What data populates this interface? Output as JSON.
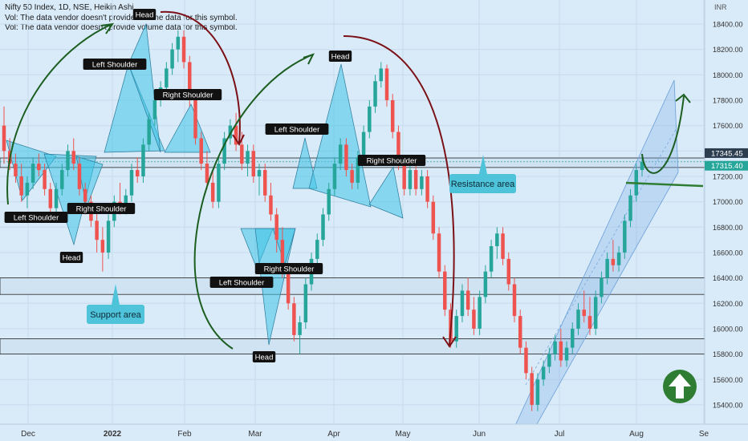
{
  "chart_data": {
    "type": "candlestick",
    "title": "Nifty 50 Index, 1D, NSE, Heikin Ashi",
    "notes": [
      "Vol: The data vendor doesn't provide volume data for this symbol.",
      "Vol: The data vendor doesn't provide volume data for this symbol."
    ],
    "currency": "INR",
    "ylim": [
      15200,
      18600
    ],
    "y_ticks": [
      "18400.00",
      "18200.00",
      "18000.00",
      "17800.00",
      "17600.00",
      "17400.00",
      "17200.00",
      "17000.00",
      "16800.00",
      "16600.00",
      "16400.00",
      "16200.00",
      "16000.00",
      "15800.00",
      "15600.00",
      "15400.00"
    ],
    "x_ticks": [
      "Dec",
      "2022",
      "Feb",
      "Mar",
      "Apr",
      "May",
      "Jun",
      "Jul",
      "Aug",
      "Se"
    ],
    "price_tags": [
      {
        "label": "17345.45",
        "value": 17345.45,
        "color": "#2c3e50"
      },
      {
        "label": "17315.40",
        "value": 17315.4,
        "color": "#26a69a"
      }
    ],
    "candles": [
      [
        17600,
        17750,
        17300,
        17400
      ],
      [
        17400,
        17500,
        17250,
        17300
      ],
      [
        17300,
        17380,
        17150,
        17200
      ],
      [
        17200,
        17300,
        17000,
        17050
      ],
      [
        17050,
        17200,
        16950,
        17150
      ],
      [
        17150,
        17350,
        17100,
        17300
      ],
      [
        17300,
        17380,
        17200,
        17250
      ],
      [
        17250,
        17300,
        17050,
        17100
      ],
      [
        17100,
        17150,
        16850,
        16950
      ],
      [
        16950,
        17150,
        16900,
        17100
      ],
      [
        17100,
        17300,
        17050,
        17250
      ],
      [
        17250,
        17450,
        17200,
        17400
      ],
      [
        17400,
        17500,
        17250,
        17300
      ],
      [
        17300,
        17350,
        17050,
        17100
      ],
      [
        17100,
        17150,
        16900,
        17000
      ],
      [
        17000,
        17050,
        16800,
        16850
      ],
      [
        16850,
        16950,
        16600,
        16700
      ],
      [
        16700,
        16800,
        16450,
        16600
      ],
      [
        16600,
        16900,
        16550,
        16850
      ],
      [
        16850,
        17050,
        16800,
        17000
      ],
      [
        17000,
        17150,
        16900,
        16950
      ],
      [
        16950,
        17100,
        16900,
        17050
      ],
      [
        17050,
        17300,
        17000,
        17250
      ],
      [
        17250,
        17350,
        17150,
        17200
      ],
      [
        17200,
        17500,
        17150,
        17450
      ],
      [
        17450,
        17700,
        17400,
        17650
      ],
      [
        17650,
        17850,
        17600,
        17800
      ],
      [
        17800,
        17950,
        17750,
        17900
      ],
      [
        17900,
        18100,
        17850,
        18050
      ],
      [
        18050,
        18250,
        18000,
        18200
      ],
      [
        18200,
        18350,
        18100,
        18300
      ],
      [
        18300,
        18350,
        18050,
        18100
      ],
      [
        18100,
        18150,
        17750,
        17800
      ],
      [
        17800,
        17850,
        17450,
        17500
      ],
      [
        17500,
        17550,
        17250,
        17300
      ],
      [
        17300,
        17400,
        17100,
        17150
      ],
      [
        17150,
        17250,
        16950,
        17000
      ],
      [
        17000,
        17350,
        16950,
        17300
      ],
      [
        17300,
        17550,
        17250,
        17500
      ],
      [
        17500,
        17650,
        17450,
        17600
      ],
      [
        17600,
        17700,
        17400,
        17450
      ],
      [
        17450,
        17550,
        17250,
        17300
      ],
      [
        17300,
        17450,
        17200,
        17400
      ],
      [
        17400,
        17450,
        17150,
        17200
      ],
      [
        17200,
        17300,
        17050,
        17250
      ],
      [
        17250,
        17300,
        17000,
        17050
      ],
      [
        17050,
        17150,
        16850,
        16900
      ],
      [
        16900,
        16950,
        16600,
        16700
      ],
      [
        16700,
        16800,
        16400,
        16450
      ],
      [
        16450,
        16500,
        16150,
        16200
      ],
      [
        16200,
        16250,
        15900,
        15950
      ],
      [
        15950,
        16100,
        15800,
        16050
      ],
      [
        16050,
        16400,
        16000,
        16350
      ],
      [
        16350,
        16600,
        16300,
        16550
      ],
      [
        16550,
        16750,
        16500,
        16700
      ],
      [
        16700,
        16950,
        16650,
        16900
      ],
      [
        16900,
        17150,
        16850,
        17100
      ],
      [
        17100,
        17350,
        17050,
        17300
      ],
      [
        17300,
        17500,
        17250,
        17450
      ],
      [
        17450,
        17500,
        17200,
        17250
      ],
      [
        17250,
        17300,
        17100,
        17150
      ],
      [
        17150,
        17400,
        17100,
        17350
      ],
      [
        17350,
        17600,
        17300,
        17550
      ],
      [
        17550,
        17800,
        17500,
        17750
      ],
      [
        17750,
        18000,
        17700,
        17950
      ],
      [
        17950,
        18100,
        17900,
        18050
      ],
      [
        18050,
        18080,
        17750,
        17800
      ],
      [
        17800,
        17850,
        17500,
        17550
      ],
      [
        17550,
        17600,
        17250,
        17300
      ],
      [
        17300,
        17350,
        17050,
        17100
      ],
      [
        17100,
        17300,
        17050,
        17250
      ],
      [
        17250,
        17300,
        17050,
        17100
      ],
      [
        17100,
        17250,
        17050,
        17200
      ],
      [
        17200,
        17250,
        16950,
        17000
      ],
      [
        17000,
        17050,
        16700,
        16750
      ],
      [
        16750,
        16800,
        16400,
        16450
      ],
      [
        16450,
        16500,
        16100,
        16150
      ],
      [
        16150,
        16200,
        15850,
        15900
      ],
      [
        15900,
        16150,
        15850,
        16100
      ],
      [
        16100,
        16350,
        16050,
        16300
      ],
      [
        16300,
        16400,
        16100,
        16150
      ],
      [
        16150,
        16250,
        15950,
        16000
      ],
      [
        16000,
        16300,
        15950,
        16250
      ],
      [
        16250,
        16500,
        16200,
        16450
      ],
      [
        16450,
        16700,
        16400,
        16650
      ],
      [
        16650,
        16800,
        16550,
        16750
      ],
      [
        16750,
        16800,
        16500,
        16550
      ],
      [
        16550,
        16600,
        16300,
        16350
      ],
      [
        16350,
        16400,
        16050,
        16100
      ],
      [
        16100,
        16150,
        15800,
        15850
      ],
      [
        15850,
        15900,
        15600,
        15650
      ],
      [
        15650,
        15700,
        15350,
        15400
      ],
      [
        15400,
        15650,
        15350,
        15600
      ],
      [
        15600,
        15750,
        15550,
        15700
      ],
      [
        15700,
        15850,
        15650,
        15800
      ],
      [
        15800,
        15950,
        15750,
        15900
      ],
      [
        15900,
        16000,
        15700,
        15750
      ],
      [
        15750,
        15900,
        15700,
        15850
      ],
      [
        15850,
        16050,
        15800,
        16000
      ],
      [
        16000,
        16200,
        15950,
        16150
      ],
      [
        16150,
        16300,
        16050,
        16100
      ],
      [
        16100,
        16250,
        15950,
        16000
      ],
      [
        16000,
        16300,
        15950,
        16250
      ],
      [
        16250,
        16450,
        16200,
        16400
      ],
      [
        16400,
        16600,
        16350,
        16550
      ],
      [
        16550,
        16700,
        16450,
        16500
      ],
      [
        16500,
        16650,
        16450,
        16600
      ],
      [
        16600,
        16900,
        16550,
        16850
      ],
      [
        16850,
        17100,
        16800,
        17050
      ],
      [
        17050,
        17300,
        17000,
        17250
      ],
      [
        17250,
        17360,
        17200,
        17315
      ]
    ],
    "annotations": [
      {
        "text": "Head"
      },
      {
        "text": "Left Shoulder"
      },
      {
        "text": "Right Shoulder"
      },
      {
        "text": "Left Shoulder"
      },
      {
        "text": "Head"
      },
      {
        "text": "Right Shoulder"
      },
      {
        "text": "Head"
      },
      {
        "text": "Left Shoulder"
      },
      {
        "text": "Right Shoulder"
      },
      {
        "text": "Left Shoulder"
      },
      {
        "text": "Right Shoulder"
      },
      {
        "text": "Head"
      },
      {
        "text": "Resistance area"
      },
      {
        "text": "Support area"
      }
    ],
    "levels": [
      17345,
      17270,
      16400,
      16270,
      15920,
      15800
    ],
    "colors": {
      "up": "#26a69a",
      "down": "#ef5350",
      "curve_green": "#1b5e20",
      "curve_red": "#7b1016",
      "arrow": "#2e7d32"
    }
  }
}
